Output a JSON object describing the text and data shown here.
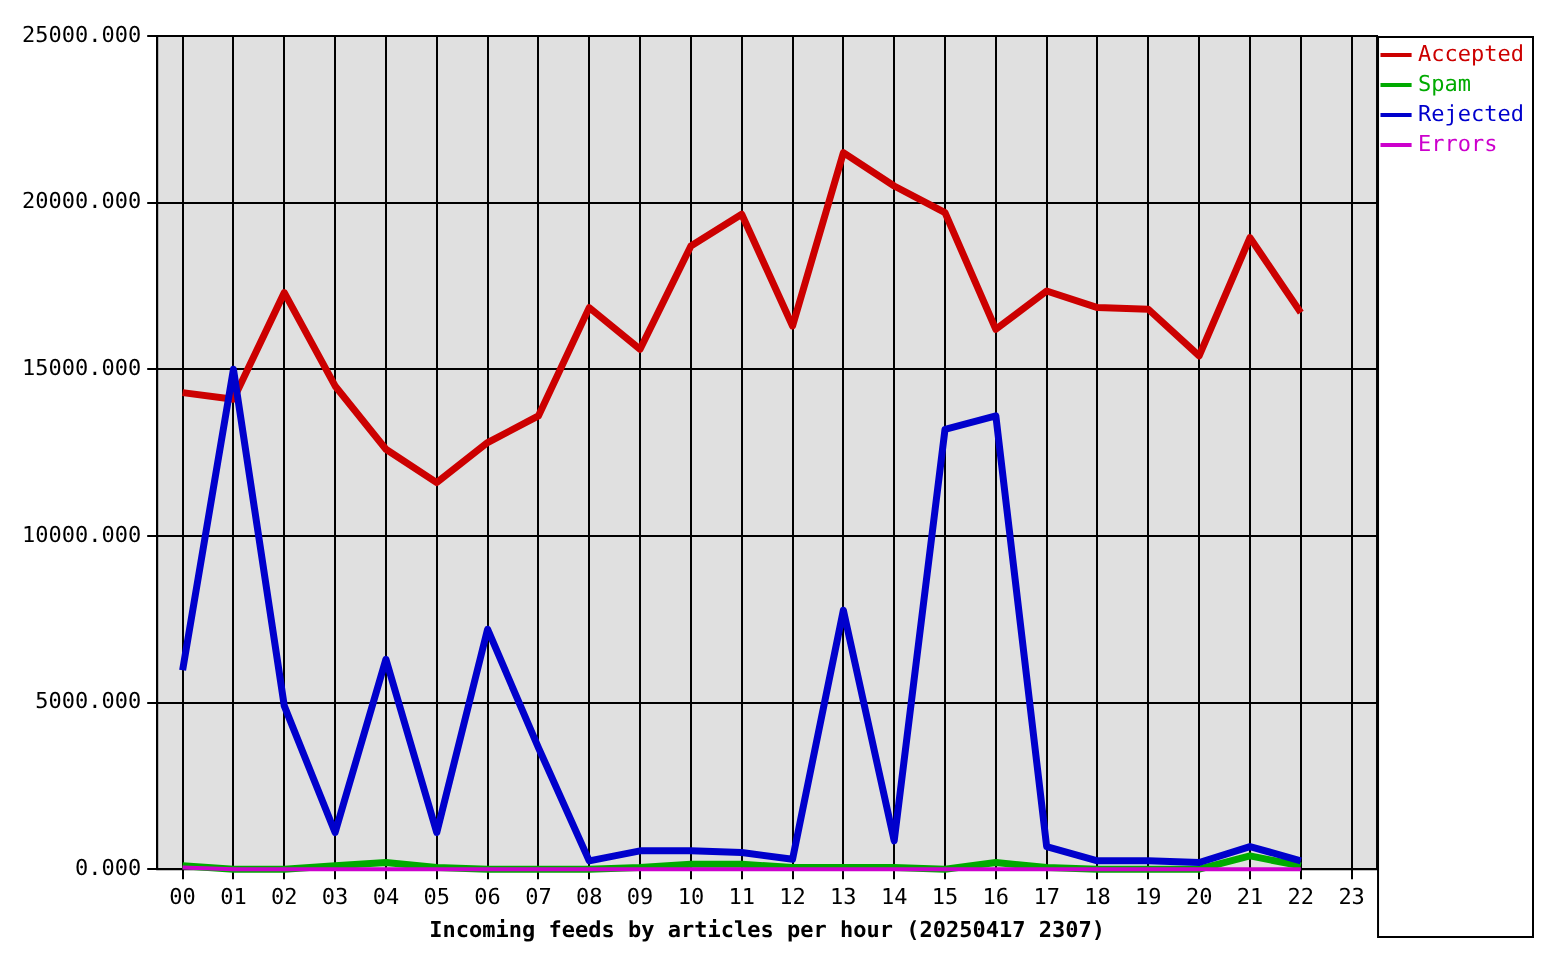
{
  "chart_data": {
    "type": "line",
    "xlabel": "Incoming feeds by articles per hour (20250417 2307)",
    "categories": [
      "00",
      "01",
      "02",
      "03",
      "04",
      "05",
      "06",
      "07",
      "08",
      "09",
      "10",
      "11",
      "12",
      "13",
      "14",
      "15",
      "16",
      "17",
      "18",
      "19",
      "20",
      "21",
      "22",
      "23"
    ],
    "series": [
      {
        "name": "Accepted",
        "color": "#cc0000",
        "values": [
          14300,
          14100,
          17300,
          14500,
          12600,
          11600,
          12800,
          13600,
          16850,
          15600,
          18700,
          19650,
          16300,
          21500,
          20500,
          19700,
          16200,
          17350,
          16850,
          16800,
          15400,
          18950,
          16700,
          null
        ]
      },
      {
        "name": "Spam",
        "color": "#00aa00",
        "values": [
          100,
          0,
          0,
          100,
          200,
          50,
          0,
          0,
          0,
          50,
          150,
          150,
          50,
          50,
          50,
          0,
          200,
          50,
          0,
          0,
          0,
          400,
          100,
          null
        ]
      },
      {
        "name": "Rejected",
        "color": "#0000cc",
        "values": [
          5970,
          15000,
          4900,
          1100,
          6300,
          1100,
          7200,
          3650,
          250,
          550,
          550,
          500,
          300,
          7770,
          850,
          13200,
          13600,
          680,
          250,
          250,
          200,
          680,
          250,
          null
        ]
      },
      {
        "name": "Errors",
        "color": "#cc00cc",
        "values": [
          50,
          0,
          0,
          0,
          0,
          0,
          0,
          0,
          0,
          0,
          0,
          0,
          0,
          0,
          0,
          0,
          0,
          0,
          0,
          0,
          0,
          0,
          0,
          null
        ]
      }
    ],
    "ylim": [
      0,
      25000
    ],
    "yticks": [
      {
        "value": 0,
        "label": "0.000"
      },
      {
        "value": 5000,
        "label": "5000.000"
      },
      {
        "value": 10000,
        "label": "10000.000"
      },
      {
        "value": 15000,
        "label": "15000.000"
      },
      {
        "value": 20000,
        "label": "20000.000"
      },
      {
        "value": 25000,
        "label": "25000.000"
      }
    ],
    "grid": true,
    "legend": "top right",
    "marker": "none",
    "line_style": "solid"
  }
}
